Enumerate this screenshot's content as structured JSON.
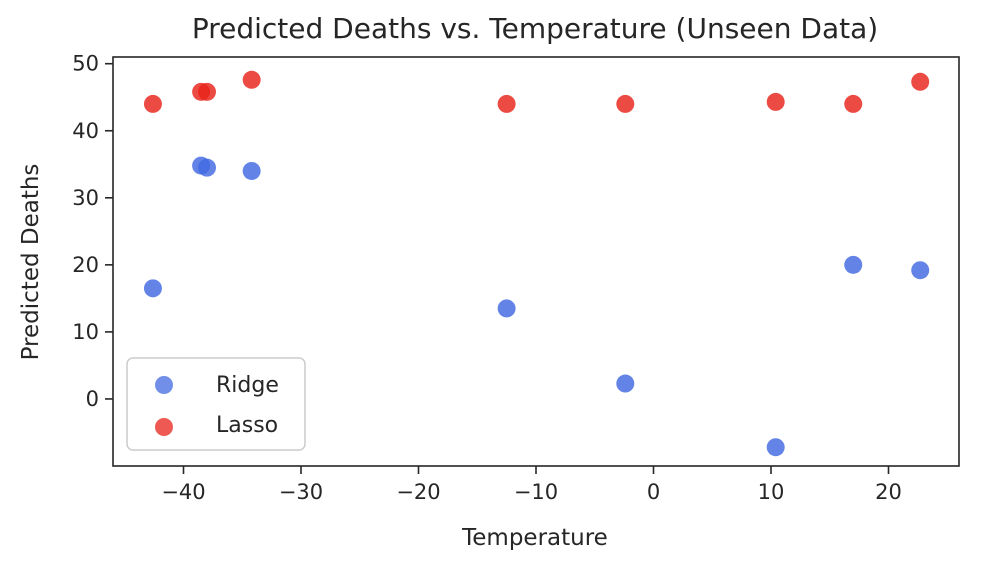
{
  "chart_data": {
    "type": "scatter",
    "title": "Predicted Deaths vs. Temperature (Unseen Data)",
    "xlabel": "Temperature",
    "ylabel": "Predicted Deaths",
    "xlim": [
      -46,
      26
    ],
    "ylim": [
      -10,
      51
    ],
    "xticks": [
      -40,
      -30,
      -20,
      -10,
      0,
      10,
      20
    ],
    "yticks": [
      0,
      10,
      20,
      30,
      40,
      50
    ],
    "grid": false,
    "legend_position": "lower-left",
    "series": [
      {
        "name": "Ridge",
        "color": "#4169e1",
        "points": [
          {
            "x": -42.6,
            "y": 16.5
          },
          {
            "x": -38.5,
            "y": 34.8
          },
          {
            "x": -38.0,
            "y": 34.5
          },
          {
            "x": -34.2,
            "y": 34.0
          },
          {
            "x": -12.5,
            "y": 13.5
          },
          {
            "x": -2.4,
            "y": 2.3
          },
          {
            "x": 10.4,
            "y": -7.2
          },
          {
            "x": 17.0,
            "y": 20.0
          },
          {
            "x": 22.7,
            "y": 19.2
          }
        ]
      },
      {
        "name": "Lasso",
        "color": "#e8231a",
        "points": [
          {
            "x": -42.6,
            "y": 44.0
          },
          {
            "x": -38.5,
            "y": 45.8
          },
          {
            "x": -38.0,
            "y": 45.8
          },
          {
            "x": -34.2,
            "y": 47.6
          },
          {
            "x": -12.5,
            "y": 44.0
          },
          {
            "x": -2.4,
            "y": 44.0
          },
          {
            "x": 10.4,
            "y": 44.3
          },
          {
            "x": 17.0,
            "y": 44.0
          },
          {
            "x": 22.7,
            "y": 47.3
          }
        ]
      }
    ]
  }
}
